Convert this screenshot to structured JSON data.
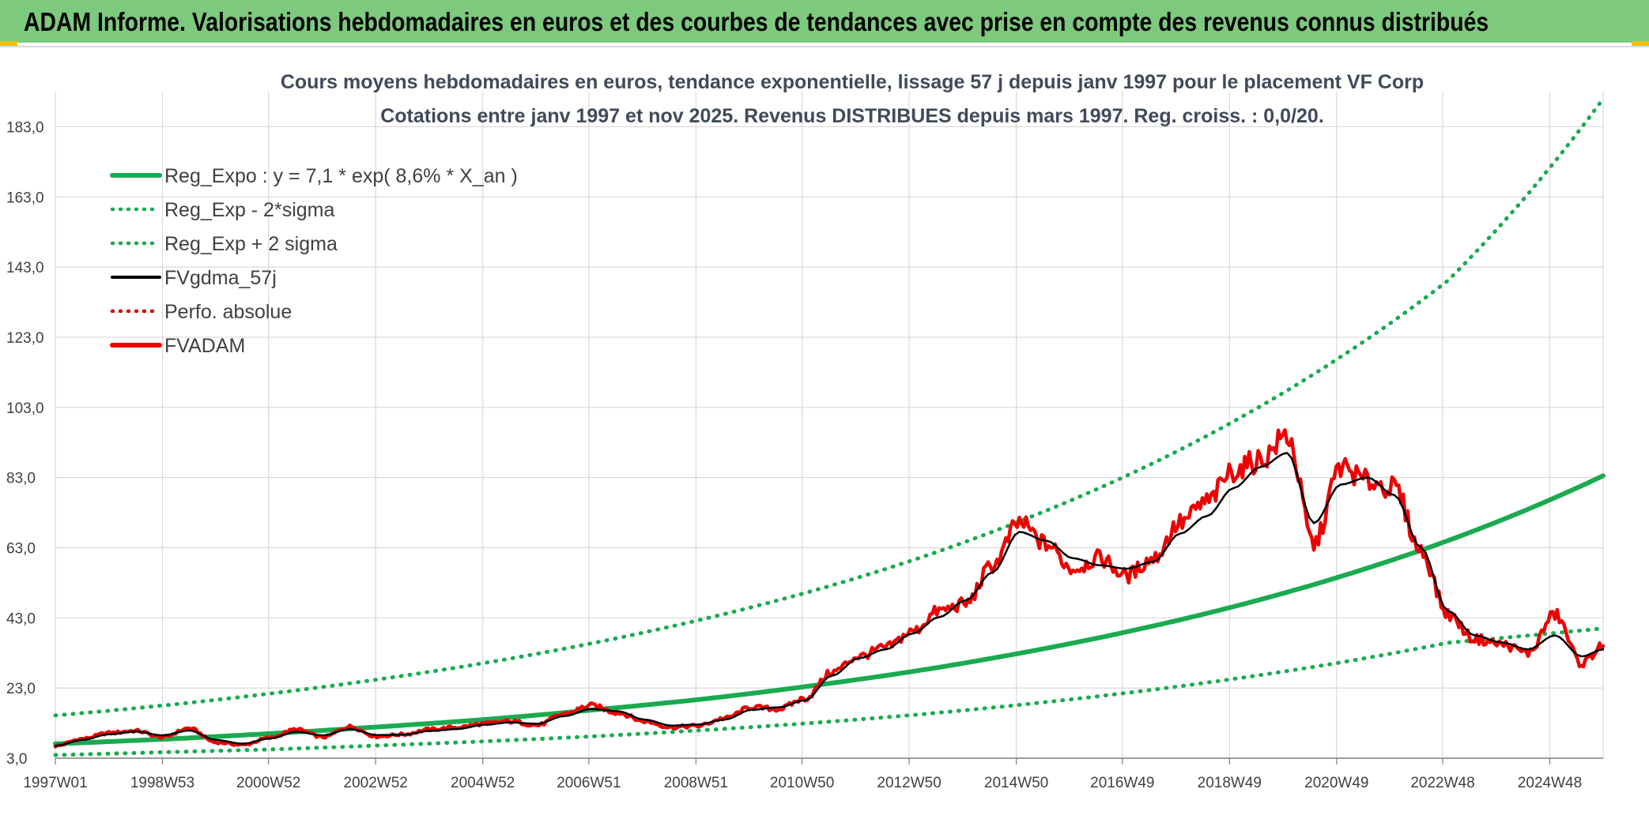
{
  "header": {
    "title": "ADAM Informe. Valorisations hebdomadaires en euros et des courbes de tendances avec prise en compte des revenus connus distribués"
  },
  "colors": {
    "banner": "#7dc97d",
    "reg_expo": "#1aaa50",
    "sigma_bands": "#1aaa50",
    "smoothed": "#000000",
    "perfo_absolue": "#e00000",
    "adam": "#ee0000",
    "grid": "#d9d9d9"
  },
  "chart_data": {
    "type": "line",
    "title_lines": [
      "Cours moyens hebdomadaires en euros, tendance exponentielle, lissage 57 j depuis janv 1997 pour le placement VF Corp",
      "Cotations entre janv 1997 et nov 2025. Revenus DISTRIBUES depuis mars 1997. Reg. croiss. : 0,0/20."
    ],
    "x_tick_labels": [
      "1997W01",
      "1998W53",
      "2000W52",
      "2002W52",
      "2004W52",
      "2006W51",
      "2008W51",
      "2010W50",
      "2012W50",
      "2014W50",
      "2016W49",
      "2018W49",
      "2020W49",
      "2022W48",
      "2024W48"
    ],
    "x_range": [
      1997.0,
      2025.9
    ],
    "y_tick_labels": [
      "3,0",
      "23,0",
      "43,0",
      "63,0",
      "83,0",
      "103,0",
      "123,0",
      "143,0",
      "163,0",
      "183,0"
    ],
    "ylim": [
      3,
      193
    ],
    "grid": true,
    "legend_position": "top-left",
    "legend": [
      {
        "label": "Reg_Expo : y = 7,1 * exp( 8,6% *  X_an )",
        "style": "solid-thick",
        "color": "#1aaa50"
      },
      {
        "label": "Reg_Exp - 2*sigma",
        "style": "dotted",
        "color": "#1aaa50"
      },
      {
        "label": "Reg_Exp + 2 sigma",
        "style": "dotted",
        "color": "#1aaa50"
      },
      {
        "label": "FVgdma_57j",
        "style": "solid",
        "color": "#000000"
      },
      {
        "label": "Perfo. absolue",
        "style": "dotted",
        "color": "#e00000"
      },
      {
        "label": "FVADAM",
        "style": "solid-thick",
        "color": "#ee0000"
      }
    ],
    "series": [
      {
        "name": "Reg_Expo : y = 7,1 * exp( 8,6% *  X_an )",
        "x": [
          1997,
          1999,
          2001,
          2003,
          2005,
          2007,
          2009,
          2011,
          2013,
          2015,
          2017,
          2019,
          2021,
          2023,
          2025.9
        ],
        "values": [
          7.1,
          8.4,
          10.0,
          11.9,
          14.0,
          16.7,
          19.7,
          23.4,
          27.7,
          32.9,
          39.0,
          46.2,
          54.8,
          65.0,
          83.5
        ]
      },
      {
        "name": "Reg_Exp - 2*sigma",
        "x": [
          1997,
          1999,
          2001,
          2003,
          2005,
          2007,
          2009,
          2011,
          2013,
          2015,
          2017,
          2019,
          2021,
          2023,
          2025.9
        ],
        "values": [
          3.9,
          4.7,
          5.5,
          6.6,
          7.8,
          9.2,
          10.9,
          12.9,
          15.3,
          18.2,
          21.6,
          25.6,
          30.3,
          35.9,
          40.0
        ]
      },
      {
        "name": "Reg_Exp + 2 sigma",
        "x": [
          1997,
          1999,
          2001,
          2003,
          2005,
          2007,
          2009,
          2011,
          2013,
          2015,
          2017,
          2019,
          2021,
          2023,
          2025.9
        ],
        "values": [
          15.2,
          18.0,
          21.4,
          25.4,
          30.1,
          35.7,
          42.3,
          50.1,
          59.4,
          70.5,
          83.5,
          99.0,
          117.4,
          139.1,
          191.0
        ]
      },
      {
        "name": "FVgdma_57j",
        "x": [
          1997.0,
          1997.5,
          1998.0,
          1998.5,
          1999.0,
          1999.5,
          2000.0,
          2000.5,
          2001.0,
          2001.5,
          2002.0,
          2002.5,
          2003.0,
          2003.5,
          2004.0,
          2004.5,
          2005.0,
          2005.5,
          2006.0,
          2006.5,
          2007.0,
          2007.5,
          2008.0,
          2008.5,
          2009.0,
          2009.5,
          2010.0,
          2010.5,
          2011.0,
          2011.5,
          2012.0,
          2012.5,
          2013.0,
          2013.5,
          2014.0,
          2014.5,
          2015.0,
          2015.5,
          2016.0,
          2016.5,
          2017.0,
          2017.5,
          2018.0,
          2018.5,
          2019.0,
          2019.5,
          2020.0,
          2020.5,
          2021.0,
          2021.5,
          2022.0,
          2022.5,
          2023.0,
          2023.5,
          2024.0,
          2024.5,
          2025.0,
          2025.5,
          2025.9
        ],
        "values": [
          6.5,
          8.2,
          9.8,
          10.6,
          9.5,
          10.9,
          8.2,
          7.1,
          8.6,
          10.5,
          9.5,
          11.3,
          9.6,
          9.7,
          10.8,
          11.3,
          12.5,
          13.2,
          12.8,
          15.0,
          17.0,
          16.4,
          14.0,
          12.3,
          12.6,
          14.0,
          16.8,
          17.5,
          19.5,
          26.5,
          31.5,
          34.0,
          38.5,
          43.2,
          48.0,
          56.0,
          67.5,
          65.0,
          60.0,
          58.0,
          57.0,
          59.0,
          67.0,
          72.0,
          80.0,
          86.0,
          90.0,
          70.0,
          81.0,
          83.0,
          78.0,
          63.0,
          45.0,
          38.0,
          36.0,
          34.0,
          38.0,
          32.0,
          34.0
        ]
      },
      {
        "name": "FVADAM",
        "x": [
          1997.0,
          1997.5,
          1998.0,
          1998.5,
          1999.0,
          1999.5,
          2000.0,
          2000.5,
          2001.0,
          2001.5,
          2002.0,
          2002.5,
          2003.0,
          2003.5,
          2004.0,
          2004.5,
          2005.0,
          2005.5,
          2006.0,
          2006.5,
          2007.0,
          2007.5,
          2008.0,
          2008.5,
          2009.0,
          2009.5,
          2010.0,
          2010.5,
          2011.0,
          2011.5,
          2012.0,
          2012.5,
          2013.0,
          2013.5,
          2014.0,
          2014.5,
          2015.0,
          2015.5,
          2016.0,
          2016.5,
          2017.0,
          2017.5,
          2018.0,
          2018.5,
          2019.0,
          2019.5,
          2020.0,
          2020.5,
          2021.0,
          2021.5,
          2022.0,
          2022.5,
          2023.0,
          2023.5,
          2024.0,
          2024.5,
          2025.0,
          2025.5,
          2025.9
        ],
        "values": [
          6.5,
          8.5,
          10.2,
          10.8,
          9.0,
          11.5,
          7.5,
          6.8,
          8.8,
          11.2,
          9.0,
          12.0,
          9.2,
          9.8,
          11.2,
          11.8,
          12.8,
          13.5,
          12.4,
          15.6,
          18.0,
          16.0,
          13.5,
          11.8,
          12.2,
          14.4,
          17.5,
          17.0,
          20.0,
          27.5,
          32.0,
          34.5,
          39.0,
          45.0,
          47.0,
          58.0,
          70.0,
          64.0,
          57.0,
          60.0,
          55.0,
          60.0,
          70.0,
          76.0,
          85.0,
          88.0,
          95.0,
          64.0,
          86.0,
          82.0,
          80.0,
          62.0,
          44.0,
          37.0,
          35.5,
          33.0,
          44.0,
          30.0,
          35.0
        ]
      }
    ]
  }
}
